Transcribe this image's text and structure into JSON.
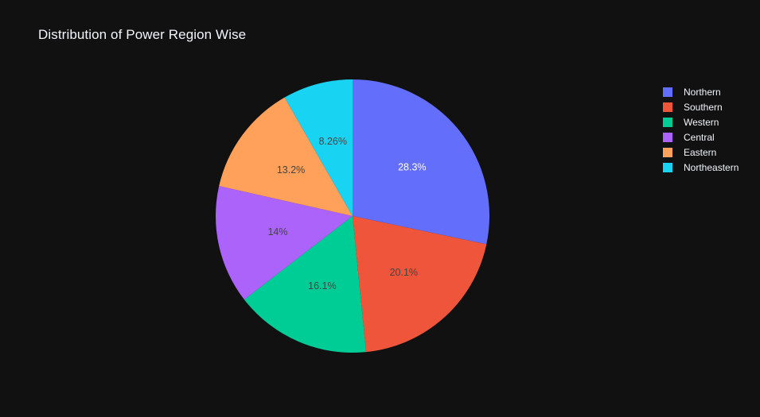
{
  "chart_data": {
    "type": "pie",
    "title": "Distribution of Power Region Wise",
    "categories": [
      "Northern",
      "Southern",
      "Western",
      "Central",
      "Eastern",
      "Northeastern"
    ],
    "values": [
      28.3,
      20.1,
      16.1,
      14.0,
      13.2,
      8.26
    ],
    "labels": [
      "28.3%",
      "20.1%",
      "16.1%",
      "14%",
      "13.2%",
      "8.26%"
    ],
    "colors": [
      "#636efa",
      "#EF553B",
      "#00cc96",
      "#ab63fa",
      "#FFA15A",
      "#19d3f3"
    ],
    "label_colors": [
      "#ffffff",
      "#444444",
      "#444444",
      "#444444",
      "#444444",
      "#444444"
    ],
    "legend": {
      "placement": "right",
      "entries": [
        "Northern",
        "Southern",
        "Western",
        "Central",
        "Eastern",
        "Northeastern"
      ]
    },
    "direction": "clockwise",
    "start": "top"
  }
}
